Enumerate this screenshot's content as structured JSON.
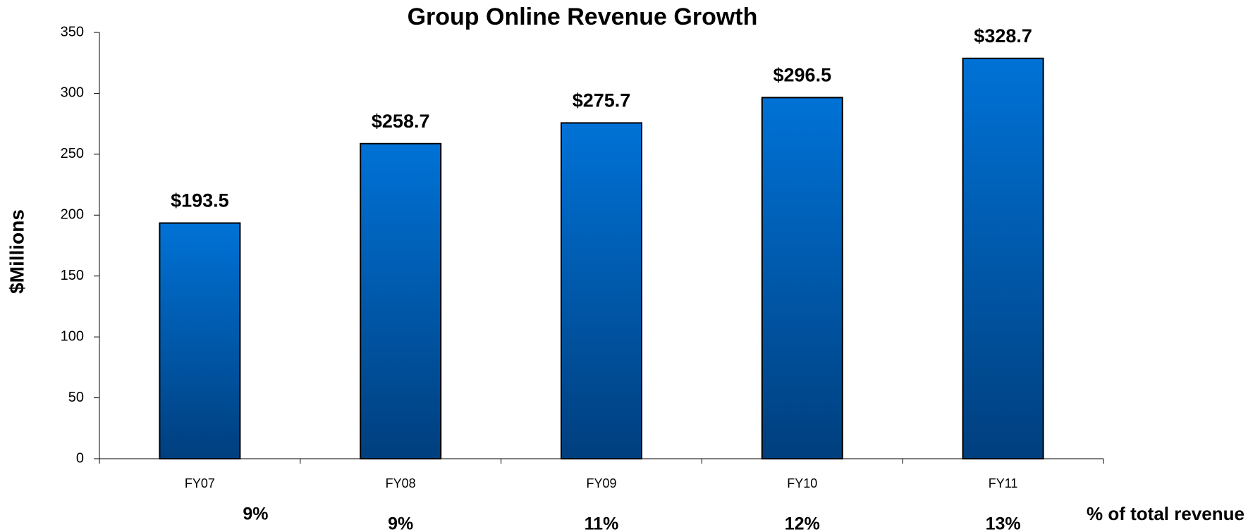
{
  "chart_data": {
    "type": "bar",
    "title": "Group Online Revenue Growth",
    "y_label": "$Millions",
    "categories": [
      "FY07",
      "FY08",
      "FY09",
      "FY10",
      "FY11"
    ],
    "values": [
      193.5,
      258.7,
      275.7,
      296.5,
      328.7
    ],
    "value_labels": [
      "$193.5",
      "$258.7",
      "$275.7",
      "$296.5",
      "$328.7"
    ],
    "color": "#0066c4",
    "share_title": "% of total revenue",
    "shares": [
      "9%",
      "9%",
      "11%",
      "12%",
      "13%"
    ],
    "ylim": [
      0,
      350
    ],
    "yticks": [
      0,
      50,
      100,
      150,
      200,
      250,
      300,
      350
    ],
    "grid": false
  }
}
